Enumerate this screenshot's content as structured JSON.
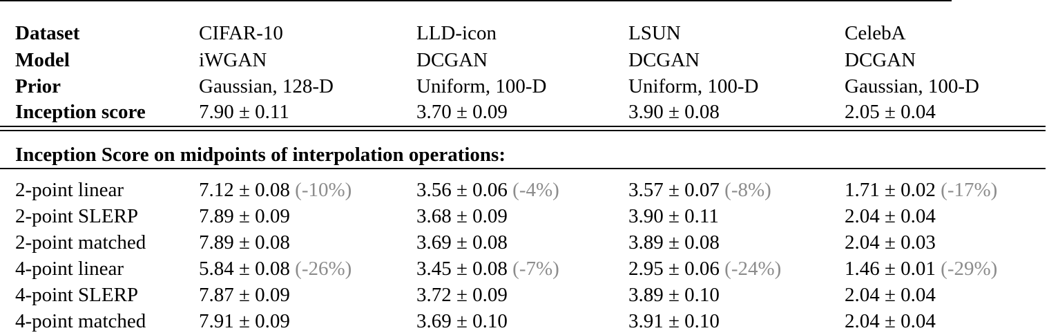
{
  "header": {
    "rows": [
      {
        "label": "Dataset",
        "values": [
          "CIFAR-10",
          "LLD-icon",
          "LSUN",
          "CelebA"
        ]
      },
      {
        "label": "Model",
        "values": [
          "iWGAN",
          "DCGAN",
          "DCGAN",
          "DCGAN"
        ]
      },
      {
        "label": "Prior",
        "values": [
          "Gaussian, 128-D",
          "Uniform, 100-D",
          "Uniform, 100-D",
          "Gaussian, 100-D"
        ]
      },
      {
        "label": "Inception score",
        "values": [
          "7.90 ± 0.11",
          "3.70 ± 0.09",
          "3.90 ± 0.08",
          "2.05 ± 0.04"
        ]
      }
    ]
  },
  "section": {
    "title": "Inception Score on midpoints of interpolation operations:"
  },
  "body": {
    "rows": [
      {
        "label": "2-point linear",
        "cells": [
          {
            "value": "7.12 ± 0.08",
            "pct": "(-10%)"
          },
          {
            "value": "3.56 ± 0.06",
            "pct": "(-4%)"
          },
          {
            "value": "3.57 ± 0.07",
            "pct": "(-8%)"
          },
          {
            "value": "1.71 ± 0.02",
            "pct": "(-17%)"
          }
        ]
      },
      {
        "label": "2-point SLERP",
        "cells": [
          {
            "value": "7.89 ± 0.09"
          },
          {
            "value": "3.68 ± 0.09"
          },
          {
            "value": "3.90 ± 0.11"
          },
          {
            "value": "2.04 ± 0.04"
          }
        ]
      },
      {
        "label": "2-point matched",
        "cells": [
          {
            "value": "7.89 ± 0.08"
          },
          {
            "value": "3.69 ± 0.08"
          },
          {
            "value": "3.89 ± 0.08"
          },
          {
            "value": "2.04 ± 0.03"
          }
        ]
      },
      {
        "label": "4-point linear",
        "cells": [
          {
            "value": "5.84 ± 0.08",
            "pct": "(-26%)"
          },
          {
            "value": "3.45 ± 0.08",
            "pct": "(-7%)"
          },
          {
            "value": "2.95 ± 0.06",
            "pct": "(-24%)"
          },
          {
            "value": "1.46 ± 0.01",
            "pct": "(-29%)"
          }
        ]
      },
      {
        "label": "4-point SLERP",
        "cells": [
          {
            "value": "7.87 ± 0.09"
          },
          {
            "value": "3.72 ± 0.09"
          },
          {
            "value": "3.89 ± 0.10"
          },
          {
            "value": "2.04 ± 0.04"
          }
        ]
      },
      {
        "label": "4-point matched",
        "cells": [
          {
            "value": "7.91 ± 0.09"
          },
          {
            "value": "3.69 ± 0.10"
          },
          {
            "value": "3.91 ± 0.10"
          },
          {
            "value": "2.04 ± 0.04"
          }
        ]
      }
    ]
  }
}
